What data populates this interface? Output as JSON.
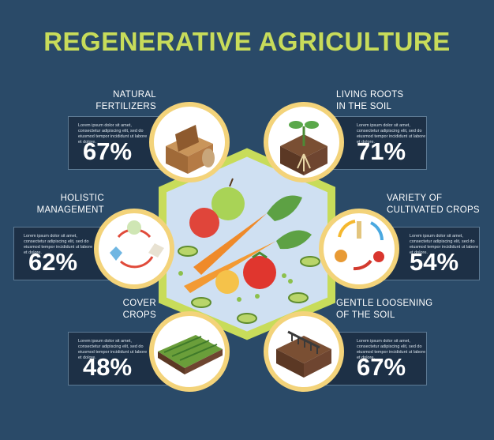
{
  "title": "REGENERATIVE AGRICULTURE",
  "lorem": "Lorem ipsum dolor sit amet, consectetur adipiscing elit, sed do eiusmod tempor incididunt ut labore et dolore.",
  "items": [
    {
      "heading": "NATURAL FERTILIZERS",
      "value": "67%",
      "icon": "fertilizer-box-icon"
    },
    {
      "heading": "LIVING ROOTS IN THE SOIL",
      "value": "71%",
      "icon": "plant-roots-icon"
    },
    {
      "heading": "HOLISTIC MANAGEMENT",
      "value": "62%",
      "icon": "cycle-icon"
    },
    {
      "heading": "VARIETY OF CULTIVATED CROPS",
      "value": "54%",
      "icon": "crop-rotation-icon"
    },
    {
      "heading": "COVER CROPS",
      "value": "48%",
      "icon": "cover-crops-icon"
    },
    {
      "heading": "GENTLE LOOSENING OF THE SOIL",
      "value": "67%",
      "icon": "soil-rake-icon"
    }
  ],
  "colors": {
    "background": "#2a4a68",
    "panel": "#1d3046",
    "accent": "#c8dc5a",
    "frame": "#f3d37a"
  }
}
